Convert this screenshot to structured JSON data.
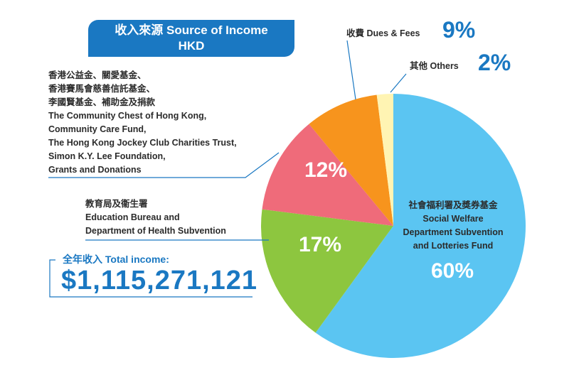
{
  "chart_data": {
    "type": "pie",
    "title": "收入來源 Source of Income\nHKD",
    "categories": [
      "社會福利署及獎券基金\nSocial Welfare\nDepartment Subvention\nand Lotteries Fund",
      "教育局及衞生署\nEducation Bureau and\nDepartment of Health Subvention",
      "香港公益金、關愛基金、\n香港賽馬會慈善信託基金、\n李國賢基金、補助金及捐款\nThe Community Chest of Hong Kong,\nCommunity Care Fund,\nThe Hong Kong Jockey Club Charities Trust,\nSimon K.Y. Lee Foundation,\nGrants and Donations",
      "收費 Dues & Fees",
      "其他 Others"
    ],
    "values": [
      60,
      17,
      12,
      9,
      2
    ],
    "value_labels": [
      "60%",
      "17%",
      "12%",
      "9%",
      "2%"
    ],
    "colors": [
      "#5bc5f2",
      "#8dc63f",
      "#ef6b7a",
      "#f7941d",
      "#fff4b3"
    ],
    "total_income": {
      "label": "全年收入 Total income:",
      "value": "$1,115,271,121"
    }
  }
}
